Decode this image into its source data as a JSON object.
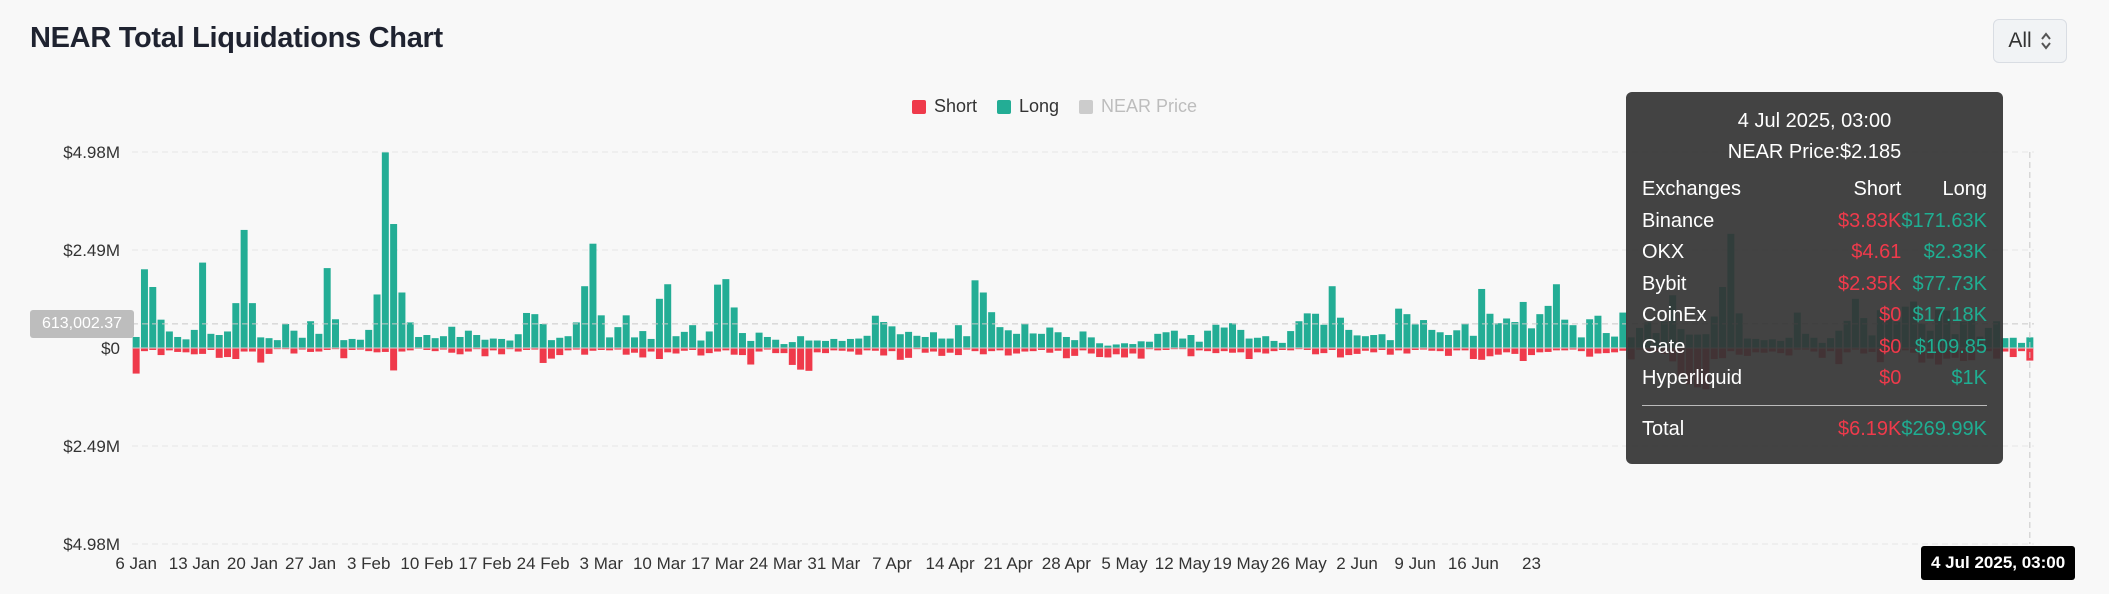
{
  "header": {
    "title": "NEAR Total Liquidations Chart",
    "range_value": "All"
  },
  "legend": [
    {
      "name": "Short",
      "color": "#ef3a4b",
      "active": true
    },
    {
      "name": "Long",
      "color": "#23ad95",
      "active": true
    },
    {
      "name": "NEAR Price",
      "color": "#cccccc",
      "active": false
    }
  ],
  "crosshair": {
    "y_value": "613,002.37",
    "x_value": "4 Jul 2025, 03:00"
  },
  "tooltip": {
    "date": "4 Jul 2025, 03:00",
    "price_line": "NEAR Price:$2.185",
    "headers": [
      "Exchanges",
      "Short",
      "Long"
    ],
    "rows": [
      {
        "exchange": "Binance",
        "short": "$3.83K",
        "long": "$171.63K"
      },
      {
        "exchange": "OKX",
        "short": "$4.61",
        "long": "$2.33K"
      },
      {
        "exchange": "Bybit",
        "short": "$2.35K",
        "long": "$77.73K"
      },
      {
        "exchange": "CoinEx",
        "short": "$0",
        "long": "$17.18K"
      },
      {
        "exchange": "Gate",
        "short": "$0",
        "long": "$109.85"
      },
      {
        "exchange": "Hyperliquid",
        "short": "$0",
        "long": "$1K"
      }
    ],
    "total": {
      "label": "Total",
      "short": "$6.19K",
      "long": "$269.99K"
    }
  },
  "chart_data": {
    "type": "bar",
    "ylim": [
      -4.98,
      4.98
    ],
    "y_unit": "M USD",
    "y_tick_labels": [
      "$4.98M",
      "$2.49M",
      "$0",
      "$2.49M",
      "$4.98M"
    ],
    "y_tick_values": [
      4.98,
      2.49,
      0,
      -2.49,
      -4.98
    ],
    "x_tick_labels": [
      "6 Jan",
      "13 Jan",
      "20 Jan",
      "27 Jan",
      "3 Feb",
      "10 Feb",
      "17 Feb",
      "24 Feb",
      "3 Mar",
      "10 Mar",
      "17 Mar",
      "24 Mar",
      "31 Mar",
      "7 Apr",
      "14 Apr",
      "21 Apr",
      "28 Apr",
      "5 May",
      "12 May",
      "19 May",
      "26 May",
      "2 Jun",
      "9 Jun",
      "16 Jun",
      "23"
    ],
    "series": [
      {
        "name": "Long",
        "values": [
          0.28,
          2.0,
          1.55,
          0.72,
          0.42,
          0.28,
          0.22,
          0.46,
          2.17,
          0.36,
          0.33,
          0.42,
          1.14,
          3.0,
          1.14,
          0.27,
          0.25,
          0.2,
          0.61,
          0.44,
          0.26,
          0.68,
          0.36,
          2.03,
          0.73,
          0.2,
          0.23,
          0.21,
          0.46,
          1.36,
          4.97,
          3.15,
          1.41,
          0.65,
          0.28,
          0.33,
          0.25,
          0.3,
          0.54,
          0.28,
          0.44,
          0.33,
          0.21,
          0.24,
          0.23,
          0.19,
          0.35,
          0.89,
          0.86,
          0.61,
          0.2,
          0.26,
          0.3,
          0.65,
          1.57,
          2.65,
          0.83,
          0.27,
          0.53,
          0.83,
          0.27,
          0.43,
          0.23,
          1.25,
          1.62,
          0.3,
          0.41,
          0.58,
          0.19,
          0.42,
          1.61,
          1.75,
          1.03,
          0.38,
          0.18,
          0.39,
          0.28,
          0.21,
          0.1,
          0.15,
          0.3,
          0.19,
          0.19,
          0.18,
          0.23,
          0.18,
          0.23,
          0.24,
          0.31,
          0.82,
          0.66,
          0.55,
          0.35,
          0.41,
          0.31,
          0.28,
          0.4,
          0.24,
          0.24,
          0.58,
          0.3,
          1.72,
          1.41,
          0.91,
          0.53,
          0.45,
          0.36,
          0.62,
          0.37,
          0.36,
          0.52,
          0.4,
          0.28,
          0.2,
          0.42,
          0.27,
          0.12,
          0.06,
          0.09,
          0.12,
          0.1,
          0.17,
          0.16,
          0.36,
          0.4,
          0.44,
          0.24,
          0.33,
          0.16,
          0.44,
          0.59,
          0.52,
          0.63,
          0.46,
          0.24,
          0.26,
          0.3,
          0.18,
          0.13,
          0.43,
          0.68,
          0.88,
          0.87,
          0.59,
          1.57,
          0.77,
          0.46,
          0.32,
          0.3,
          0.33,
          0.35,
          0.2,
          1.0,
          0.86,
          0.6,
          0.71,
          0.46,
          0.4,
          0.33,
          0.45,
          0.62,
          0.31,
          1.5,
          0.87,
          0.63,
          0.75,
          0.66,
          1.17,
          0.5,
          0.86,
          1.07,
          1.62,
          0.72,
          0.58,
          0.27,
          0.73,
          0.82,
          0.38,
          0.29,
          0.9,
          0.27,
          0.51,
          0.65,
          0.38,
          0.67,
          1.34,
          0.48,
          0.34,
          0.34,
          0.35,
          0.8,
          1.55,
          2.9,
          0.88,
          0.24,
          0.23,
          0.2,
          0.22,
          0.18,
          0.26,
          0.9,
          0.36,
          0.26,
          0.13,
          0.25,
          0.44,
          0.69,
          1.25,
          0.76,
          0.32,
          0.96,
          0.75,
          0.67,
          1.05,
          1.18,
          0.62,
          0.44,
          0.97,
          0.95,
          0.35,
          0.67,
          0.71,
          0.29,
          0.51,
          0.68,
          0.25,
          0.26,
          0.13,
          0.27
        ],
        "color": "#23ad95"
      },
      {
        "name": "Short",
        "values": [
          0.65,
          0.08,
          0.05,
          0.18,
          0.06,
          0.1,
          0.11,
          0.16,
          0.15,
          0.05,
          0.25,
          0.23,
          0.28,
          0.09,
          0.09,
          0.37,
          0.15,
          0.03,
          0.03,
          0.14,
          0.04,
          0.1,
          0.09,
          0.05,
          0.03,
          0.26,
          0.05,
          0.04,
          0.08,
          0.11,
          0.1,
          0.57,
          0.09,
          0.06,
          0.02,
          0.05,
          0.08,
          0.04,
          0.12,
          0.16,
          0.09,
          0.03,
          0.21,
          0.06,
          0.16,
          0.03,
          0.09,
          0.05,
          0.04,
          0.38,
          0.27,
          0.18,
          0.06,
          0.04,
          0.17,
          0.07,
          0.05,
          0.06,
          0.04,
          0.17,
          0.12,
          0.24,
          0.09,
          0.28,
          0.11,
          0.14,
          0.07,
          0.05,
          0.19,
          0.13,
          0.09,
          0.06,
          0.17,
          0.18,
          0.42,
          0.09,
          0.04,
          0.13,
          0.13,
          0.43,
          0.55,
          0.58,
          0.11,
          0.13,
          0.06,
          0.07,
          0.09,
          0.17,
          0.06,
          0.07,
          0.19,
          0.08,
          0.3,
          0.25,
          0.03,
          0.12,
          0.09,
          0.2,
          0.12,
          0.18,
          0.04,
          0.08,
          0.16,
          0.08,
          0.06,
          0.19,
          0.14,
          0.09,
          0.08,
          0.05,
          0.12,
          0.07,
          0.26,
          0.2,
          0.06,
          0.14,
          0.23,
          0.24,
          0.16,
          0.24,
          0.14,
          0.27,
          0.03,
          0.06,
          0.05,
          0.03,
          0.03,
          0.21,
          0.06,
          0.08,
          0.13,
          0.08,
          0.12,
          0.11,
          0.28,
          0.11,
          0.14,
          0.08,
          0.05,
          0.06,
          0.03,
          0.05,
          0.16,
          0.13,
          0.05,
          0.24,
          0.18,
          0.15,
          0.07,
          0.11,
          0.05,
          0.17,
          0.06,
          0.14,
          0.05,
          0.04,
          0.07,
          0.08,
          0.2,
          0.06,
          0.06,
          0.28,
          0.3,
          0.21,
          0.17,
          0.11,
          0.15,
          0.33,
          0.18,
          0.11,
          0.1,
          0.06,
          0.06,
          0.04,
          0.08,
          0.22,
          0.14,
          0.13,
          0.11,
          0.07,
          0.29,
          0.04,
          0.1,
          0.1,
          0.15,
          0.34,
          0.7,
          0.92,
          1.0,
          1.05,
          0.28,
          0.26,
          0.08,
          0.17,
          0.2,
          0.11,
          0.12,
          0.09,
          0.13,
          0.19,
          0.04,
          0.04,
          0.09,
          0.25,
          0.08,
          0.41,
          0.11,
          0.04,
          0.14,
          0.1,
          0.36,
          0.08,
          0.11,
          0.06,
          0.12,
          0.37,
          0.27,
          0.42,
          0.27,
          0.25,
          0.33,
          0.31,
          0.06,
          0.08,
          0.27,
          0.09,
          0.23,
          0.08,
          0.32,
          0.49,
          0.06,
          0.06,
          0.04
        ],
        "color": "#ef3a4b"
      }
    ],
    "grid": true,
    "legend_position": "top-center"
  }
}
